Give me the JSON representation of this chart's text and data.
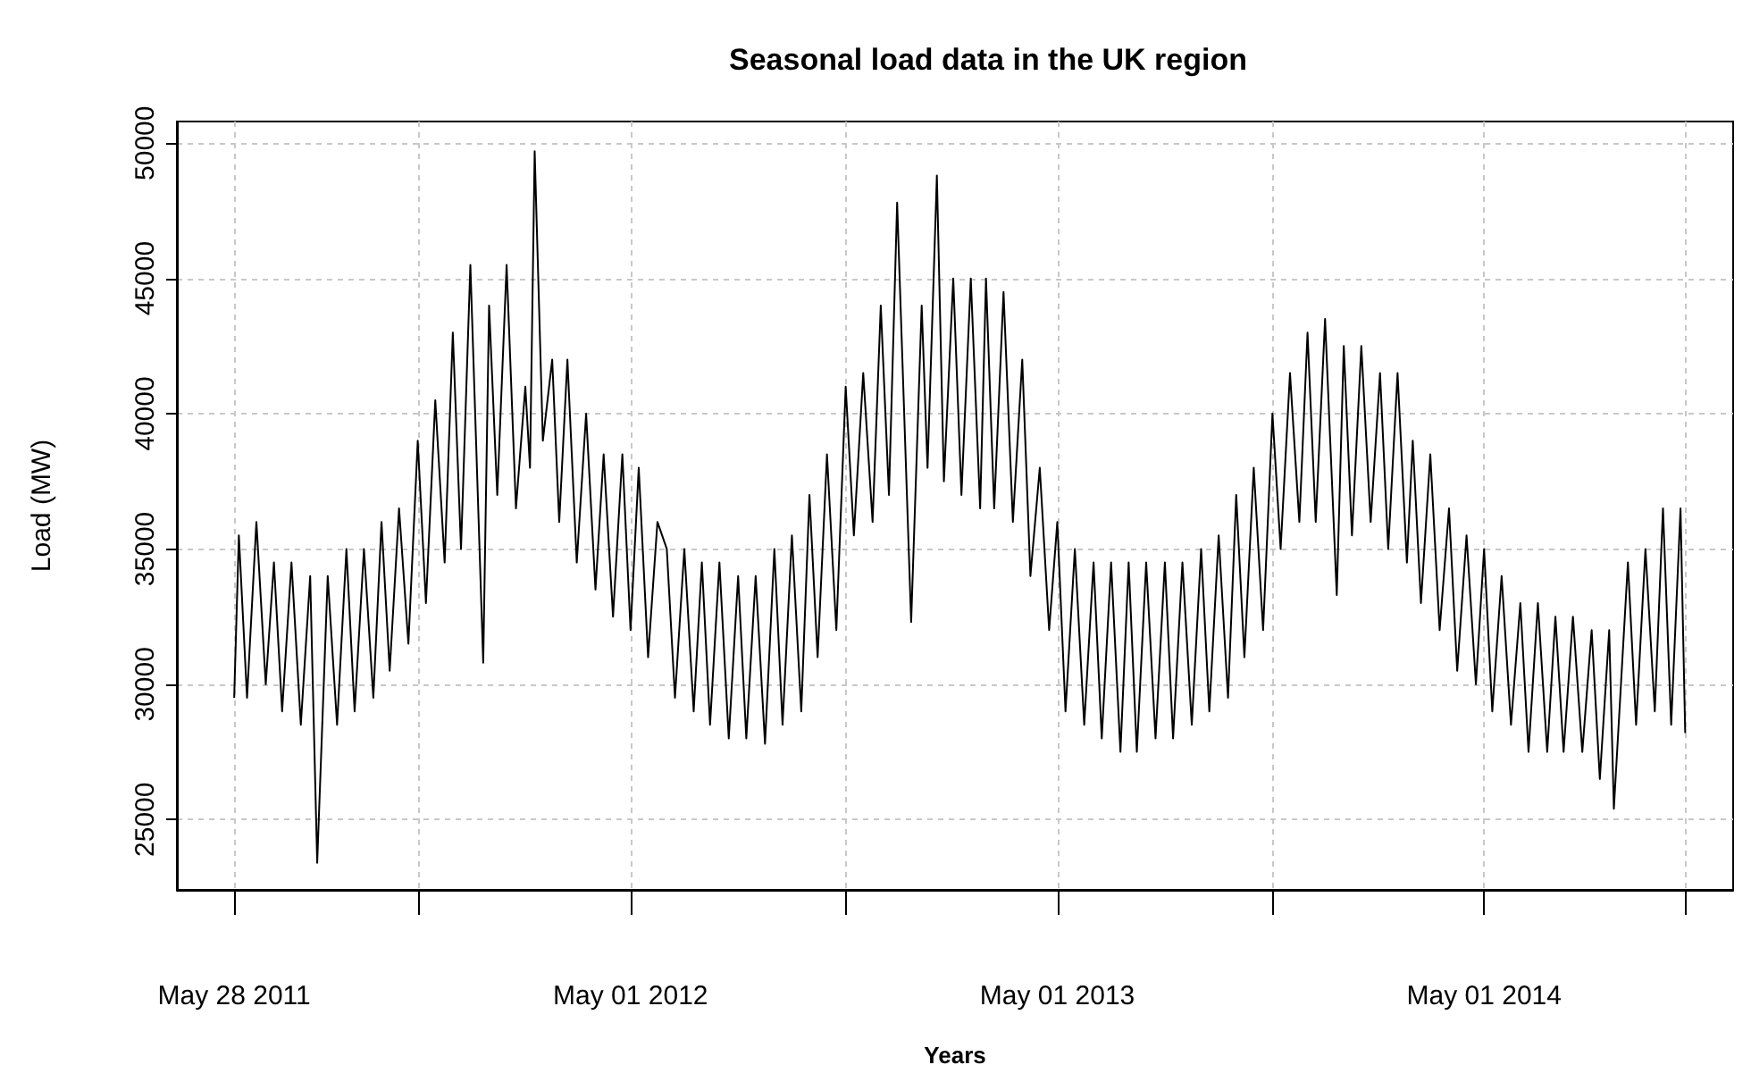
{
  "chart_data": {
    "type": "line",
    "title": "Seasonal load data in the UK region",
    "xlabel": "Years",
    "ylabel": "Load (MW)",
    "xlim": [
      "2011-04-09",
      "2014-11-30"
    ],
    "ylim": [
      22400,
      50800
    ],
    "xticks": [
      {
        "value": "2011-05-28",
        "label": "May 28 2011"
      },
      {
        "value": "2011-11-01",
        "label": null
      },
      {
        "value": "2012-05-01",
        "label": "May 01 2012"
      },
      {
        "value": "2012-11-01",
        "label": null
      },
      {
        "value": "2013-05-01",
        "label": "May 01 2013"
      },
      {
        "value": "2013-11-01",
        "label": null
      },
      {
        "value": "2014-05-01",
        "label": "May 01 2014"
      },
      {
        "value": "2014-10-20",
        "label": null
      }
    ],
    "yticks": [
      25000,
      30000,
      35000,
      40000,
      45000,
      50000
    ],
    "grid": true,
    "series": [
      {
        "color": "#000000",
        "x": [
          "2011-05-28",
          "2011-06-01",
          "2011-06-08",
          "2011-06-16",
          "2011-06-24",
          "2011-07-01",
          "2011-07-08",
          "2011-07-16",
          "2011-07-24",
          "2011-08-01",
          "2011-08-07",
          "2011-08-16",
          "2011-08-24",
          "2011-09-01",
          "2011-09-08",
          "2011-09-16",
          "2011-09-24",
          "2011-10-01",
          "2011-10-08",
          "2011-10-16",
          "2011-10-24",
          "2011-11-01",
          "2011-11-08",
          "2011-11-16",
          "2011-11-24",
          "2011-12-01",
          "2011-12-08",
          "2011-12-16",
          "2011-12-27",
          "2012-01-01",
          "2012-01-08",
          "2012-01-16",
          "2012-01-24",
          "2012-02-01",
          "2012-02-05",
          "2012-02-09",
          "2012-02-16",
          "2012-02-24",
          "2012-03-01",
          "2012-03-08",
          "2012-03-16",
          "2012-03-24",
          "2012-04-01",
          "2012-04-08",
          "2012-04-16",
          "2012-04-24",
          "2012-05-01",
          "2012-05-08",
          "2012-05-16",
          "2012-05-24",
          "2012-06-01",
          "2012-06-08",
          "2012-06-16",
          "2012-06-24",
          "2012-07-01",
          "2012-07-08",
          "2012-07-16",
          "2012-07-24",
          "2012-08-01",
          "2012-08-08",
          "2012-08-16",
          "2012-08-24",
          "2012-09-01",
          "2012-09-08",
          "2012-09-16",
          "2012-09-24",
          "2012-10-01",
          "2012-10-08",
          "2012-10-16",
          "2012-10-24",
          "2012-11-01",
          "2012-11-08",
          "2012-11-16",
          "2012-11-24",
          "2012-12-01",
          "2012-12-08",
          "2012-12-15",
          "2012-12-27",
          "2013-01-05",
          "2013-01-10",
          "2013-01-18",
          "2013-01-24",
          "2013-02-01",
          "2013-02-08",
          "2013-02-16",
          "2013-02-24",
          "2013-03-01",
          "2013-03-08",
          "2013-03-16",
          "2013-03-24",
          "2013-04-01",
          "2013-04-08",
          "2013-04-16",
          "2013-04-24",
          "2013-05-01",
          "2013-05-08",
          "2013-05-16",
          "2013-05-24",
          "2013-06-01",
          "2013-06-08",
          "2013-06-16",
          "2013-06-24",
          "2013-07-01",
          "2013-07-08",
          "2013-07-16",
          "2013-07-24",
          "2013-08-01",
          "2013-08-08",
          "2013-08-16",
          "2013-08-24",
          "2013-09-01",
          "2013-09-08",
          "2013-09-16",
          "2013-09-24",
          "2013-10-01",
          "2013-10-08",
          "2013-10-16",
          "2013-10-24",
          "2013-11-01",
          "2013-11-08",
          "2013-11-16",
          "2013-11-24",
          "2013-12-01",
          "2013-12-08",
          "2013-12-16",
          "2013-12-26",
          "2014-01-01",
          "2014-01-08",
          "2014-01-16",
          "2014-01-24",
          "2014-02-01",
          "2014-02-08",
          "2014-02-16",
          "2014-02-24",
          "2014-03-01",
          "2014-03-08",
          "2014-03-16",
          "2014-03-24",
          "2014-04-01",
          "2014-04-08",
          "2014-04-16",
          "2014-04-24",
          "2014-05-01",
          "2014-05-08",
          "2014-05-16",
          "2014-05-24",
          "2014-06-01",
          "2014-06-08",
          "2014-06-16",
          "2014-06-24",
          "2014-07-01",
          "2014-07-08",
          "2014-07-16",
          "2014-07-24",
          "2014-08-01",
          "2014-08-08",
          "2014-08-16",
          "2014-08-20",
          "2014-09-01",
          "2014-09-08",
          "2014-09-16",
          "2014-09-24",
          "2014-10-01",
          "2014-10-08",
          "2014-10-16",
          "2014-10-20"
        ],
        "values": [
          29500,
          35500,
          29500,
          36000,
          30000,
          34500,
          29000,
          34500,
          28500,
          34000,
          23400,
          34000,
          28500,
          35000,
          29000,
          35000,
          29500,
          36000,
          30500,
          36500,
          31500,
          39000,
          33000,
          40500,
          34500,
          43000,
          35000,
          45500,
          30800,
          44000,
          37000,
          45500,
          36500,
          41000,
          38000,
          49700,
          39000,
          42000,
          36000,
          42000,
          34500,
          40000,
          33500,
          38500,
          32500,
          38500,
          32000,
          38000,
          31000,
          36000,
          35000,
          29500,
          35000,
          29000,
          34500,
          28500,
          34500,
          28000,
          34000,
          28000,
          34000,
          27800,
          35000,
          28500,
          35500,
          29000,
          37000,
          31000,
          38500,
          32000,
          41000,
          35500,
          41500,
          36000,
          44000,
          37000,
          47800,
          32300,
          44000,
          38000,
          48800,
          37500,
          45000,
          37000,
          45000,
          36500,
          45000,
          36500,
          44500,
          36000,
          42000,
          34000,
          38000,
          32000,
          36000,
          29000,
          35000,
          28500,
          34500,
          28000,
          34500,
          27500,
          34500,
          27500,
          34500,
          28000,
          34500,
          28000,
          34500,
          28500,
          35000,
          29000,
          35500,
          29500,
          37000,
          31000,
          38000,
          32000,
          40000,
          35000,
          41500,
          36000,
          43000,
          36000,
          43500,
          33300,
          42500,
          35500,
          42500,
          36000,
          41500,
          35000,
          41500,
          34500,
          39000,
          33000,
          38500,
          32000,
          36500,
          30500,
          35500,
          30000,
          35000,
          29000,
          34000,
          28500,
          33000,
          27500,
          33000,
          27500,
          32500,
          27500,
          32500,
          27500,
          32000,
          26500,
          32000,
          25400,
          34500,
          28500,
          35000,
          29000,
          36500,
          28500,
          36500,
          28200
        ]
      }
    ]
  }
}
